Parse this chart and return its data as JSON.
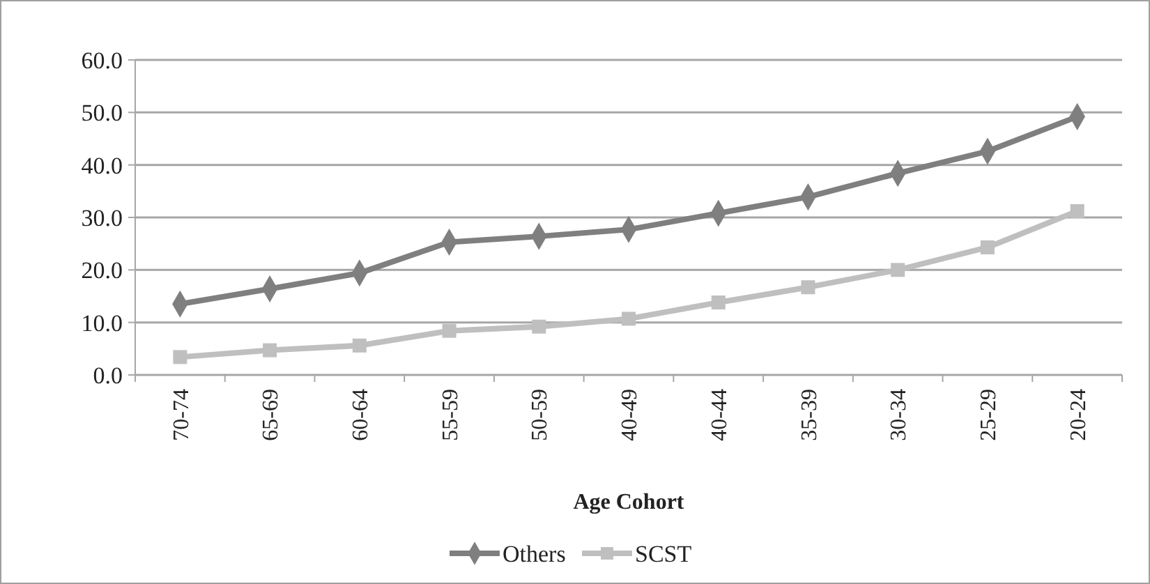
{
  "chart_data": {
    "type": "line",
    "xlabel": "Age Cohort",
    "categories": [
      "70-74",
      "65-69",
      "60-64",
      "55-59",
      "50-59",
      "40-49",
      "40-44",
      "35-39",
      "30-34",
      "25-29",
      "20-24"
    ],
    "series": [
      {
        "name": "Others",
        "color": "#7f7f7f",
        "marker": "diamond",
        "values": [
          13.5,
          16.4,
          19.4,
          25.3,
          26.4,
          27.7,
          30.8,
          33.9,
          38.4,
          42.6,
          49.2
        ]
      },
      {
        "name": "SCST",
        "color": "#bfbfbf",
        "marker": "square",
        "values": [
          3.4,
          4.7,
          5.6,
          8.4,
          9.2,
          10.7,
          13.8,
          16.7,
          20.0,
          24.3,
          31.2
        ]
      }
    ],
    "ylim": [
      0,
      60
    ],
    "yticks": [
      {
        "value": 0,
        "label": "0.0"
      },
      {
        "value": 10,
        "label": "10.0"
      },
      {
        "value": 20,
        "label": "20.0"
      },
      {
        "value": 30,
        "label": "30.0"
      },
      {
        "value": 40,
        "label": "40.0"
      },
      {
        "value": 50,
        "label": "50.0"
      },
      {
        "value": 60,
        "label": "60.0"
      }
    ],
    "grid": "y",
    "legend": "bottom"
  }
}
